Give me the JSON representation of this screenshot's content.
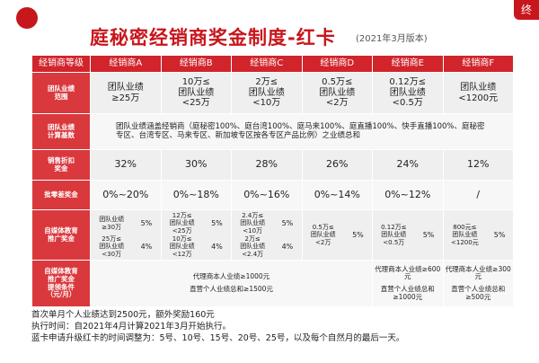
{
  "header": {
    "title": "庭秘密经销商奖金制度-红卡",
    "version": "(2021年3月版本)",
    "tab": "终"
  },
  "table": {
    "columns": [
      "经销商等级",
      "经销商A",
      "经销商B",
      "经销商C",
      "经销商D",
      "经销商E",
      "经销商F"
    ],
    "rows": [
      {
        "label": [
          "团队业绩",
          "范围"
        ],
        "cells": [
          [
            "团队业绩",
            "≥25万"
          ],
          [
            "10万≤",
            "团队业绩",
            "<25万"
          ],
          [
            "2万≤",
            "团队业绩",
            "<10万"
          ],
          [
            "0.5万≤",
            "团队业绩",
            "<2万"
          ],
          [
            "0.12万≤",
            "团队业绩",
            "<0.5万"
          ],
          [
            "团队业绩",
            "<1200元"
          ]
        ]
      },
      {
        "label": [
          "团队业绩",
          "计算基数"
        ],
        "text": "团队业绩涵盖经销商（庭秘密100%、庭台湾100%、庭马来100%、庭直播100%、快手直播100%、庭秘密专区、台湾专区、马来专区、新加坡专区按各专区产品比例）之业绩总和"
      },
      {
        "label": [
          "销售折扣",
          "奖金"
        ],
        "cells": [
          "32%",
          "30%",
          "28%",
          "26%",
          "24%",
          "12%"
        ]
      },
      {
        "label": [
          "批零差奖金"
        ],
        "cells": [
          "0%~20%",
          "0%~18%",
          "0%~16%",
          "0%~14%",
          "0%~12%",
          "/"
        ]
      },
      {
        "label": [
          "自媒体教育",
          "推广奖金"
        ],
        "cells": [
          [
            {
              "range": [
                "团队业绩",
                "≥30万"
              ],
              "rate": "5%"
            },
            {
              "range": [
                "25万≤",
                "团队业绩",
                "<30万"
              ],
              "rate": "4%"
            }
          ],
          [
            {
              "range": [
                "12万≤",
                "团队业绩",
                "<25万"
              ],
              "rate": "5%"
            },
            {
              "range": [
                "10万≤",
                "团队业绩",
                "<12万"
              ],
              "rate": "4%"
            }
          ],
          [
            {
              "range": [
                "2.4万≤",
                "团队业绩",
                "<10万"
              ],
              "rate": "5%"
            },
            {
              "range": [
                "2万≤",
                "团队业绩",
                "<2.4万"
              ],
              "rate": "4%"
            }
          ],
          [
            {
              "range": [
                "0.5万≤",
                "团队业绩",
                "<2万"
              ],
              "rate": "5%"
            }
          ],
          [
            {
              "range": [
                "0.12万≤",
                "团队业绩",
                "<0.5万"
              ],
              "rate": "5%"
            }
          ],
          [
            {
              "range": [
                "800元≤",
                "团队业绩",
                "<1200元"
              ],
              "rate": "5%"
            }
          ]
        ]
      },
      {
        "label": [
          "自媒体教育",
          "推广奖金",
          "提领条件",
          "（元/月）"
        ],
        "groups": [
          [
            "代理商本人业绩≥1000元",
            "直营个人业绩总和≥1500元"
          ],
          [
            "代理商本人业绩≥600元",
            "直营个人业绩总和≥1000元"
          ],
          [
            "代理商本人业绩≥300元",
            "直营个人业绩总和≥500元"
          ]
        ]
      }
    ]
  },
  "notes": [
    "首次单月个人业绩达到2500元，额外奖励160元",
    "执行时间：自2021年4月计算2021年3月开始执行。",
    "蓝卡申请升级红卡的时间调整为：5号、10号、15号、20号、25号，以及每个自然月的最后一天。"
  ]
}
